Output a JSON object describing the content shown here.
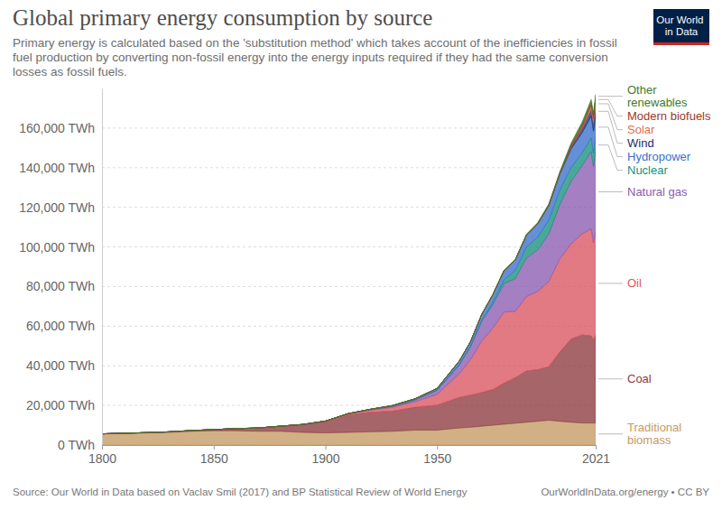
{
  "chart_data": {
    "type": "area",
    "title": "Global primary energy consumption by source",
    "subtitle": "Primary energy is calculated based on the 'substitution method' which takes account of the inefficiencies in fossil fuel production by converting non-fossil energy into the energy inputs required if they had the same conversion losses as fossil fuels.",
    "source": "Source: Our World in Data based on Vaclav Smil (2017) and BP Statistical Review of World Energy",
    "credit": "OurWorldInData.org/energy • CC BY",
    "logo": "Our World in Data",
    "stacked": true,
    "grid": true,
    "x": [
      1800,
      1810,
      1820,
      1830,
      1840,
      1850,
      1860,
      1870,
      1880,
      1890,
      1900,
      1910,
      1920,
      1930,
      1940,
      1950,
      1960,
      1965,
      1970,
      1975,
      1980,
      1985,
      1990,
      1995,
      2000,
      2005,
      2010,
      2015,
      2019,
      2020,
      2021
    ],
    "xlim": [
      1800,
      2021
    ],
    "xticks": [
      1800,
      1850,
      1900,
      1950,
      2021
    ],
    "ylim": [
      0,
      180000
    ],
    "yticks": [
      {
        "value": 0,
        "label": "0 TWh"
      },
      {
        "value": 20000,
        "label": "20,000 TWh"
      },
      {
        "value": 40000,
        "label": "40,000 TWh"
      },
      {
        "value": 60000,
        "label": "60,000 TWh"
      },
      {
        "value": 80000,
        "label": "80,000 TWh"
      },
      {
        "value": 100000,
        "label": "100,000 TWh"
      },
      {
        "value": 120000,
        "label": "120,000 TWh"
      },
      {
        "value": 140000,
        "label": "140,000 TWh"
      },
      {
        "value": 160000,
        "label": "160,000 TWh"
      }
    ],
    "series": [
      {
        "name": "Traditional biomass",
        "color": "#c49a64",
        "values": [
          5556,
          5833,
          6111,
          6389,
          6944,
          7222,
          7222,
          6944,
          6944,
          6389,
          6111,
          6389,
          6667,
          6944,
          7500,
          7500,
          8611,
          9000,
          9500,
          10000,
          10500,
          11000,
          11500,
          12000,
          12500,
          12000,
          11500,
          11111,
          11111,
          11111,
          11111
        ]
      },
      {
        "name": "Coal",
        "color": "#8c3a3f",
        "values": [
          97,
          128,
          153,
          264,
          356,
          569,
          1061,
          1642,
          2542,
          3856,
          5728,
          8656,
          9833,
          10125,
          11586,
          12603,
          15442,
          16140,
          17000,
          18000,
          20700,
          23000,
          25900,
          26000,
          27000,
          35000,
          42000,
          44500,
          44000,
          42000,
          44500
        ]
      },
      {
        "name": "Oil",
        "color": "#d9545f",
        "values": [
          0,
          0,
          0,
          0,
          0,
          0,
          0,
          6,
          33,
          89,
          181,
          531,
          1111,
          1944,
          2778,
          5444,
          12000,
          18000,
          26000,
          31000,
          36000,
          33500,
          37500,
          39500,
          43000,
          47000,
          48000,
          51000,
          54000,
          49000,
          52000
        ]
      },
      {
        "name": "Natural gas",
        "color": "#8a5bb0",
        "values": [
          0,
          0,
          0,
          0,
          0,
          0,
          0,
          0,
          6,
          64,
          64,
          142,
          233,
          550,
          889,
          2092,
          4500,
          6500,
          10000,
          12000,
          14300,
          16500,
          19500,
          21000,
          24000,
          27500,
          31600,
          34500,
          39000,
          38500,
          40400
        ]
      },
      {
        "name": "Nuclear",
        "color": "#17907f",
        "values": [
          0,
          0,
          0,
          0,
          0,
          0,
          0,
          0,
          0,
          0,
          0,
          0,
          0,
          0,
          0,
          0,
          0,
          70,
          220,
          1070,
          1990,
          4100,
          5500,
          6300,
          7000,
          7300,
          7000,
          6400,
          6900,
          6700,
          6900
        ]
      },
      {
        "name": "Hydropower",
        "color": "#3a6fcc",
        "values": [
          0,
          0,
          0,
          0,
          0,
          0,
          0,
          0,
          0,
          0,
          0,
          95,
          178,
          356,
          534,
          900,
          1900,
          2500,
          3200,
          3900,
          4600,
          5300,
          5900,
          6700,
          7300,
          8000,
          9300,
          10300,
          11000,
          11200,
          11100
        ]
      },
      {
        "name": "Wind",
        "color": "#1c2e6b",
        "values": [
          0,
          0,
          0,
          0,
          0,
          0,
          0,
          0,
          0,
          0,
          0,
          0,
          0,
          0,
          0,
          0,
          0,
          0,
          0,
          0,
          0,
          0,
          10,
          20,
          80,
          270,
          900,
          2100,
          3500,
          4000,
          4900
        ]
      },
      {
        "name": "Solar",
        "color": "#e0704f",
        "values": [
          0,
          0,
          0,
          0,
          0,
          0,
          0,
          0,
          0,
          0,
          0,
          0,
          0,
          0,
          0,
          0,
          0,
          0,
          0,
          0,
          0,
          0,
          0,
          0,
          0,
          10,
          90,
          640,
          1800,
          2200,
          2700
        ]
      },
      {
        "name": "Modern biofuels",
        "color": "#9a3a1f",
        "values": [
          0,
          0,
          0,
          0,
          0,
          0,
          0,
          0,
          0,
          0,
          0,
          0,
          0,
          0,
          0,
          0,
          0,
          0,
          0,
          0,
          0,
          0,
          230,
          230,
          250,
          400,
          1100,
          1300,
          1600,
          1500,
          1600
        ]
      },
      {
        "name": "Other renewables",
        "color": "#3d7a2a",
        "values": [
          0,
          0,
          0,
          0,
          0,
          0,
          0,
          0,
          0,
          0,
          0,
          0,
          0,
          0,
          0,
          0,
          0,
          50,
          80,
          100,
          150,
          270,
          380,
          440,
          520,
          600,
          950,
          1350,
          1550,
          1600,
          1700
        ]
      }
    ]
  }
}
